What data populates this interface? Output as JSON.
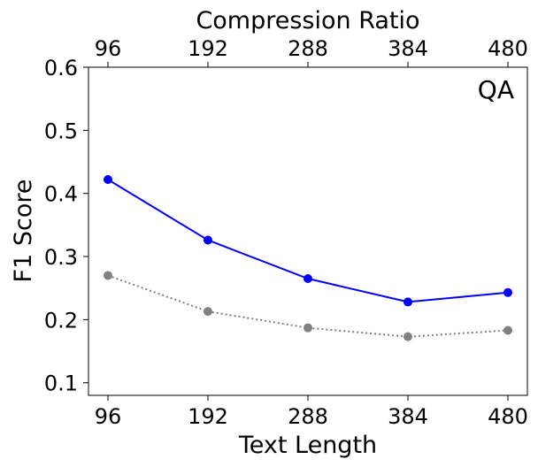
{
  "chart_data": {
    "type": "line",
    "x": [
      96,
      192,
      288,
      384,
      480
    ],
    "xlabel": "Text Length",
    "top_xlabel": "Compression Ratio",
    "top_x_ticks": [
      "96",
      "192",
      "288",
      "384",
      "480"
    ],
    "ylabel": "F1 Score",
    "ylim": [
      0.08,
      0.6
    ],
    "y_ticks": [
      0.1,
      0.2,
      0.3,
      0.4,
      0.5,
      0.6
    ],
    "y_tick_labels": [
      "0.1",
      "0.2",
      "0.3",
      "0.4",
      "0.5",
      "0.6"
    ],
    "x_tick_labels": [
      "96",
      "192",
      "288",
      "384",
      "480"
    ],
    "annotation": "QA",
    "annotation_position": "top-right",
    "grid": false,
    "series": [
      {
        "color": "#0000ff",
        "line_style": "solid",
        "marker": "circle",
        "values": [
          0.422,
          0.326,
          0.265,
          0.228,
          0.243
        ]
      },
      {
        "color": "#808080",
        "line_style": "dotted",
        "marker": "circle",
        "values": [
          0.27,
          0.213,
          0.187,
          0.173,
          0.183
        ]
      }
    ]
  }
}
